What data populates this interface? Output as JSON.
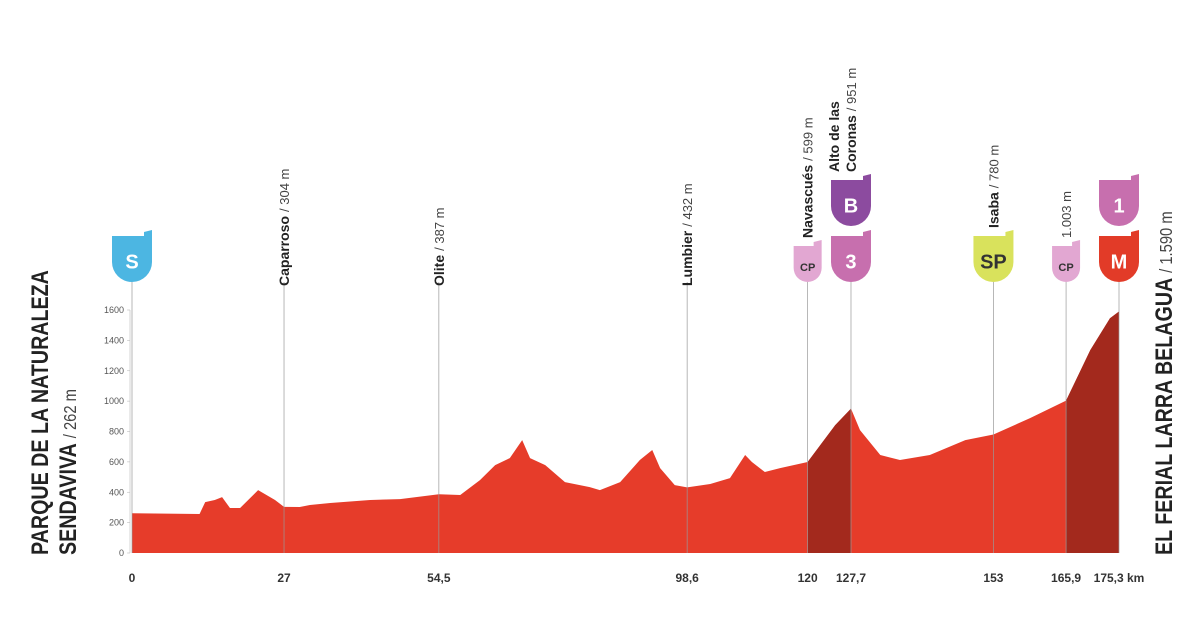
{
  "chart_data": {
    "type": "area",
    "color": "#e63c2a",
    "highlight_color": "#a3291d",
    "x": [
      0,
      12,
      13,
      14.7,
      16,
      17.4,
      19.2,
      22.4,
      25.4,
      27,
      29.8,
      31.6,
      35.2,
      42.3,
      47.6,
      54.5,
      58.3,
      61.8,
      64.5,
      67.1,
      69.3,
      70.7,
      73.4,
      76.9,
      81.3,
      83.1,
      86.7,
      90.2,
      92.4,
      93.8,
      96.4,
      98.6,
      102.7,
      106.2,
      108.9,
      110.1,
      112.4,
      115.1,
      120,
      124.9,
      127.7,
      129.3,
      132.9,
      136.4,
      141.7,
      148,
      153,
      159.5,
      165.9,
      170.2,
      173.7,
      175.3
    ],
    "values": [
      262,
      257,
      335,
      349,
      368,
      296,
      296,
      414,
      349,
      304,
      303,
      316,
      329,
      349,
      355,
      387,
      382,
      480,
      579,
      625,
      743,
      625,
      579,
      467,
      434,
      414,
      467,
      612,
      678,
      559,
      447,
      432,
      454,
      493,
      645,
      599,
      533,
      559,
      599,
      842,
      951,
      809,
      645,
      612,
      645,
      743,
      780,
      888,
      1003,
      1336,
      1546,
      1590
    ],
    "highlights": [
      {
        "from": 120,
        "to": 127.7
      },
      {
        "from": 165.9,
        "to": 175.3
      }
    ],
    "xlim": [
      0,
      175.3
    ],
    "ylim": [
      0,
      1600
    ],
    "xticks": [
      0,
      27,
      {
        "value": 54.5,
        "label": "54,5"
      },
      {
        "value": 98.6,
        "label": "98,6"
      },
      120,
      {
        "value": 127.7,
        "label": "127,7"
      },
      153,
      {
        "value": 165.9,
        "label": "165,9"
      },
      {
        "value": 175.3,
        "label": "175,3 km"
      }
    ],
    "yticks": [
      0,
      200,
      400,
      600,
      800,
      1000,
      1200,
      1400,
      1600
    ],
    "waypoints": [
      {
        "name": [
          "PARQUE DE LA NATURALEZA",
          "SENDAVIVA"
        ],
        "altitude": "/ 262 m",
        "badges": [
          {
            "text": "S",
            "color": "#4cb6e2"
          }
        ]
      },
      {
        "name": [
          "Caparroso"
        ],
        "altitude": "/ 304 m",
        "badges": []
      },
      {
        "name": [
          "Olite"
        ],
        "altitude": "/ 387 m",
        "badges": []
      },
      {
        "name": [
          "Lumbier"
        ],
        "altitude": "/ 432 m",
        "badges": []
      },
      {
        "name": [
          "Navascués"
        ],
        "altitude": "/ 599 m",
        "badges": [
          {
            "text": "CP",
            "color": "#e2a7d2"
          }
        ]
      },
      {
        "name": [
          "Alto de las",
          "Coronas"
        ],
        "altitude": "/ 951 m",
        "badges": [
          {
            "text": "3",
            "color": "#c76fae"
          },
          {
            "text": "B",
            "color": "#8c4b9f"
          }
        ]
      },
      {
        "name": [
          "Isaba"
        ],
        "altitude": "/ 780 m",
        "badges": [
          {
            "text": "SP",
            "color": "#d9e25c"
          }
        ]
      },
      {
        "name": [],
        "altitude": "1.003 m",
        "badges": [
          {
            "text": "CP",
            "color": "#e2a7d2"
          }
        ]
      },
      {
        "name": [
          "EL FERIAL LARRA BELAGUA"
        ],
        "altitude": "/ 1.590 m",
        "badges": [
          {
            "text": "M",
            "color": "#e23b28"
          },
          {
            "text": "1",
            "color": "#c76fae"
          }
        ]
      }
    ]
  }
}
